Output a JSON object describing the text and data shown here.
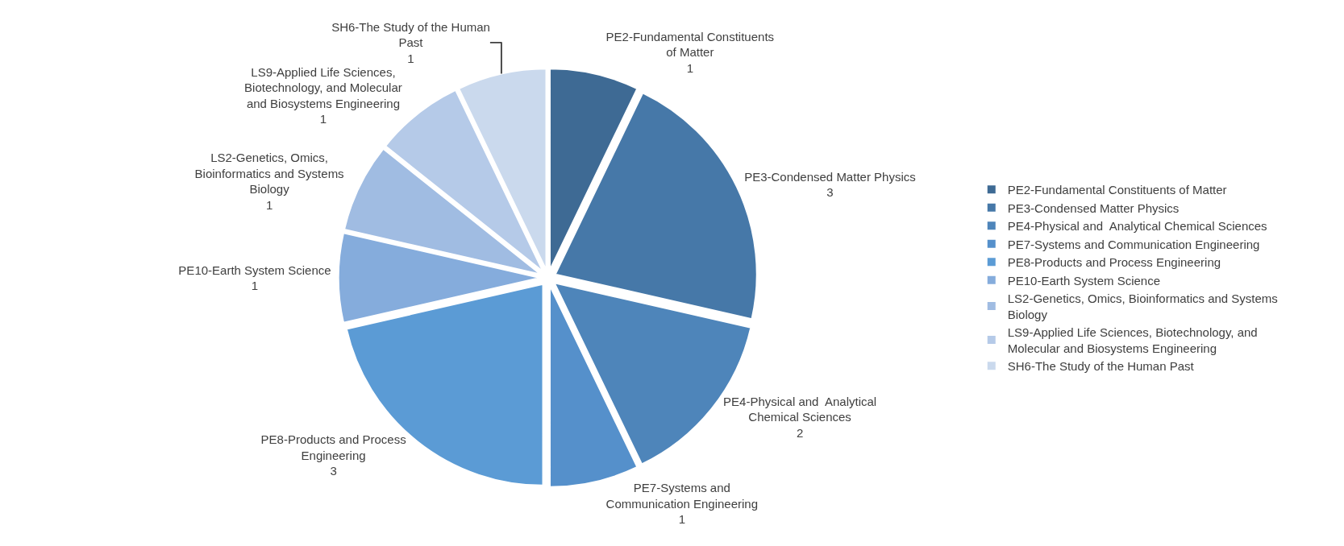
{
  "chart_data": {
    "type": "pie",
    "categories": [
      "PE2-Fundamental Constituents of Matter",
      "PE3-Condensed Matter Physics",
      "PE4-Physical and  Analytical Chemical Sciences",
      "PE7-Systems and Communication Engineering",
      "PE8-Products and Process Engineering",
      "PE10-Earth System Science",
      "LS2-Genetics, Omics, Bioinformatics and Systems Biology",
      "LS9-Applied Life Sciences, Biotechnology, and Molecular and Biosystems Engineering",
      "SH6-The Study of the Human Past"
    ],
    "values": [
      1,
      3,
      2,
      1,
      3,
      1,
      1,
      1,
      1
    ],
    "colors": [
      "#3e6a94",
      "#4678a8",
      "#4e85ba",
      "#5590cb",
      "#5b9bd5",
      "#85acdc",
      "#a0bce2",
      "#b5cae8",
      "#cad9ed"
    ],
    "data_labels": true,
    "legend": "right"
  }
}
